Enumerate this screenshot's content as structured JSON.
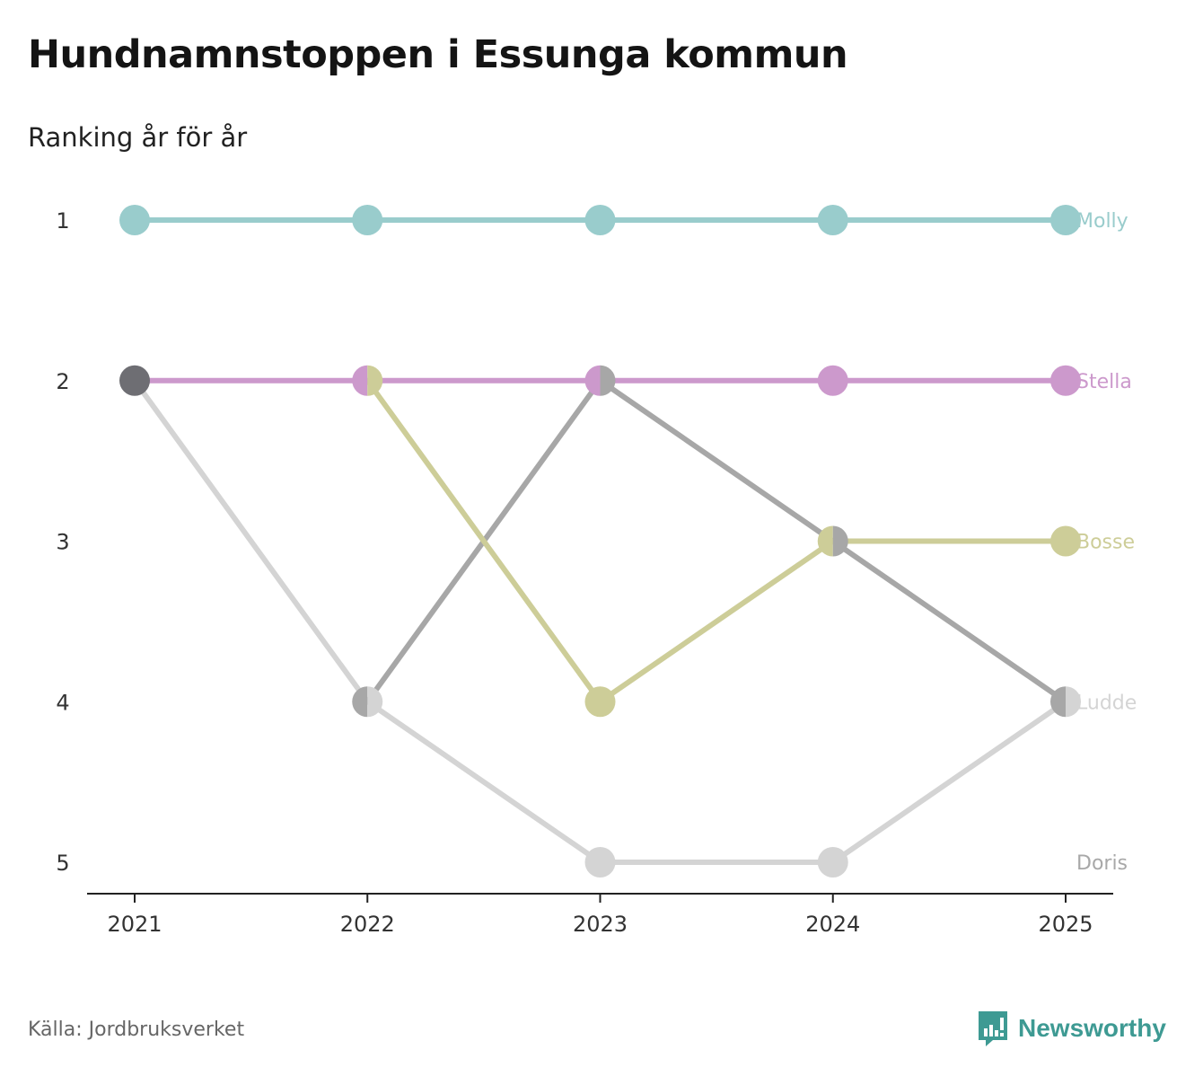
{
  "title": "Hundnamnstoppen i Essunga kommun",
  "subtitle": "Ranking år för år",
  "source": "Källa: Jordbruksverket",
  "brand": {
    "name": "Newsworthy",
    "icon": "newsworthy-logo-icon",
    "color": "#3e9a93"
  },
  "chart_data": {
    "type": "line",
    "subtype": "bump",
    "x": [
      "2021",
      "2022",
      "2023",
      "2024",
      "2025"
    ],
    "y_ticks": [
      "1",
      "2",
      "3",
      "4",
      "5"
    ],
    "ylim": [
      1,
      5
    ],
    "y_reversed": true,
    "grid": false,
    "series": [
      {
        "name": "Doris",
        "color": "#d4d4d4",
        "label_color": "#a8a8a8",
        "values": [
          2,
          4,
          5,
          5,
          4
        ]
      },
      {
        "name": "Ludde",
        "color": "#a7a7a7",
        "label_color": "#d4d4d4",
        "values": [
          null,
          4,
          2,
          3,
          4
        ]
      },
      {
        "name": "Bosse",
        "color": "#cdcd98",
        "label_color": "#cdcd98",
        "values": [
          null,
          2,
          4,
          3,
          3
        ]
      },
      {
        "name": "Stella",
        "color": "#cc99cc",
        "label_color": "#cc99cc",
        "values": [
          2,
          2,
          2,
          2,
          2
        ]
      },
      {
        "name": "Molly",
        "color": "#99cccc",
        "label_color": "#99cccc",
        "values": [
          1,
          1,
          1,
          1,
          1
        ]
      }
    ],
    "shared_point": {
      "x": "2021",
      "y": 2,
      "color": "#6e6e73"
    }
  }
}
